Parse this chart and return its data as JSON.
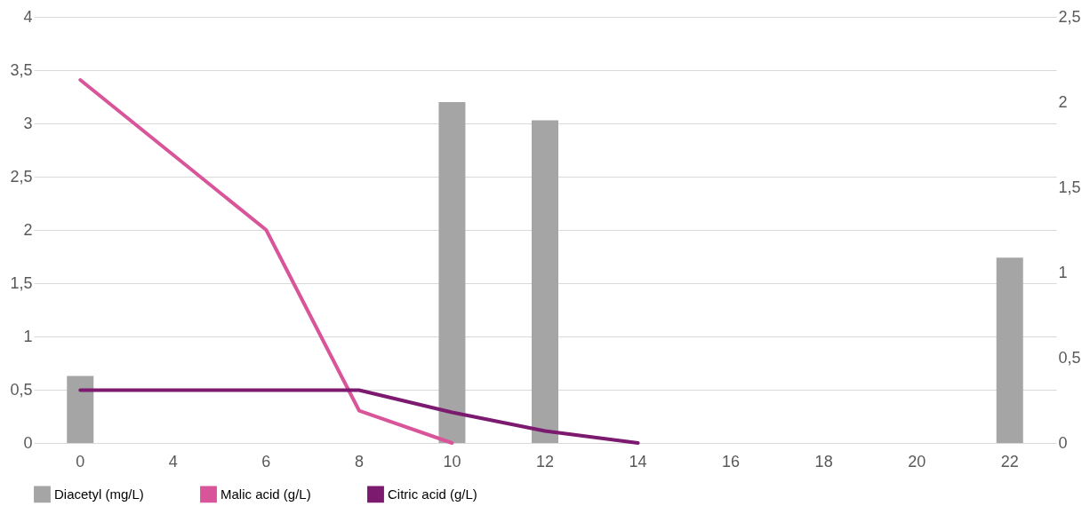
{
  "chart_data": {
    "type": "bar",
    "categories": [
      "0",
      "4",
      "6",
      "8",
      "10",
      "12",
      "14",
      "16",
      "18",
      "20",
      "22"
    ],
    "series": [
      {
        "name": "Diacetyl (mg/L)",
        "color": "#a5a5a5",
        "values": [
          0.63,
          null,
          null,
          null,
          3.2,
          3.03,
          null,
          null,
          null,
          null,
          1.74
        ]
      },
      {
        "name": "Malic acid (g/L)",
        "type": "line",
        "axis": "y2",
        "color": "#d9559a",
        "values": [
          2.13,
          1.69,
          1.25,
          0.19,
          0,
          null,
          null,
          null,
          null,
          null,
          null
        ]
      },
      {
        "name": "Citric acid (g/L)",
        "type": "line",
        "axis": "y2",
        "color": "#7b1a6f",
        "values": [
          0.31,
          0.31,
          0.31,
          0.31,
          0.18,
          0.07,
          0,
          null,
          null,
          null,
          null
        ]
      }
    ],
    "ylim": [
      0,
      4
    ],
    "yticks": [
      0,
      {
        "value": 0.5,
        "label": "0,5"
      },
      1,
      {
        "value": 1.5,
        "label": "1,5"
      },
      2,
      {
        "value": 2.5,
        "label": "2,5"
      },
      3,
      {
        "value": 3.5,
        "label": "3,5"
      },
      4
    ],
    "y2lim": [
      0,
      2.5
    ],
    "y2ticks": [
      0,
      {
        "value": 0.5,
        "label": "0,5"
      },
      1,
      {
        "value": 1.5,
        "label": "1,5"
      },
      2,
      {
        "value": 2.5,
        "label": "2,5"
      }
    ],
    "grid": "y",
    "legend": "bottom"
  }
}
